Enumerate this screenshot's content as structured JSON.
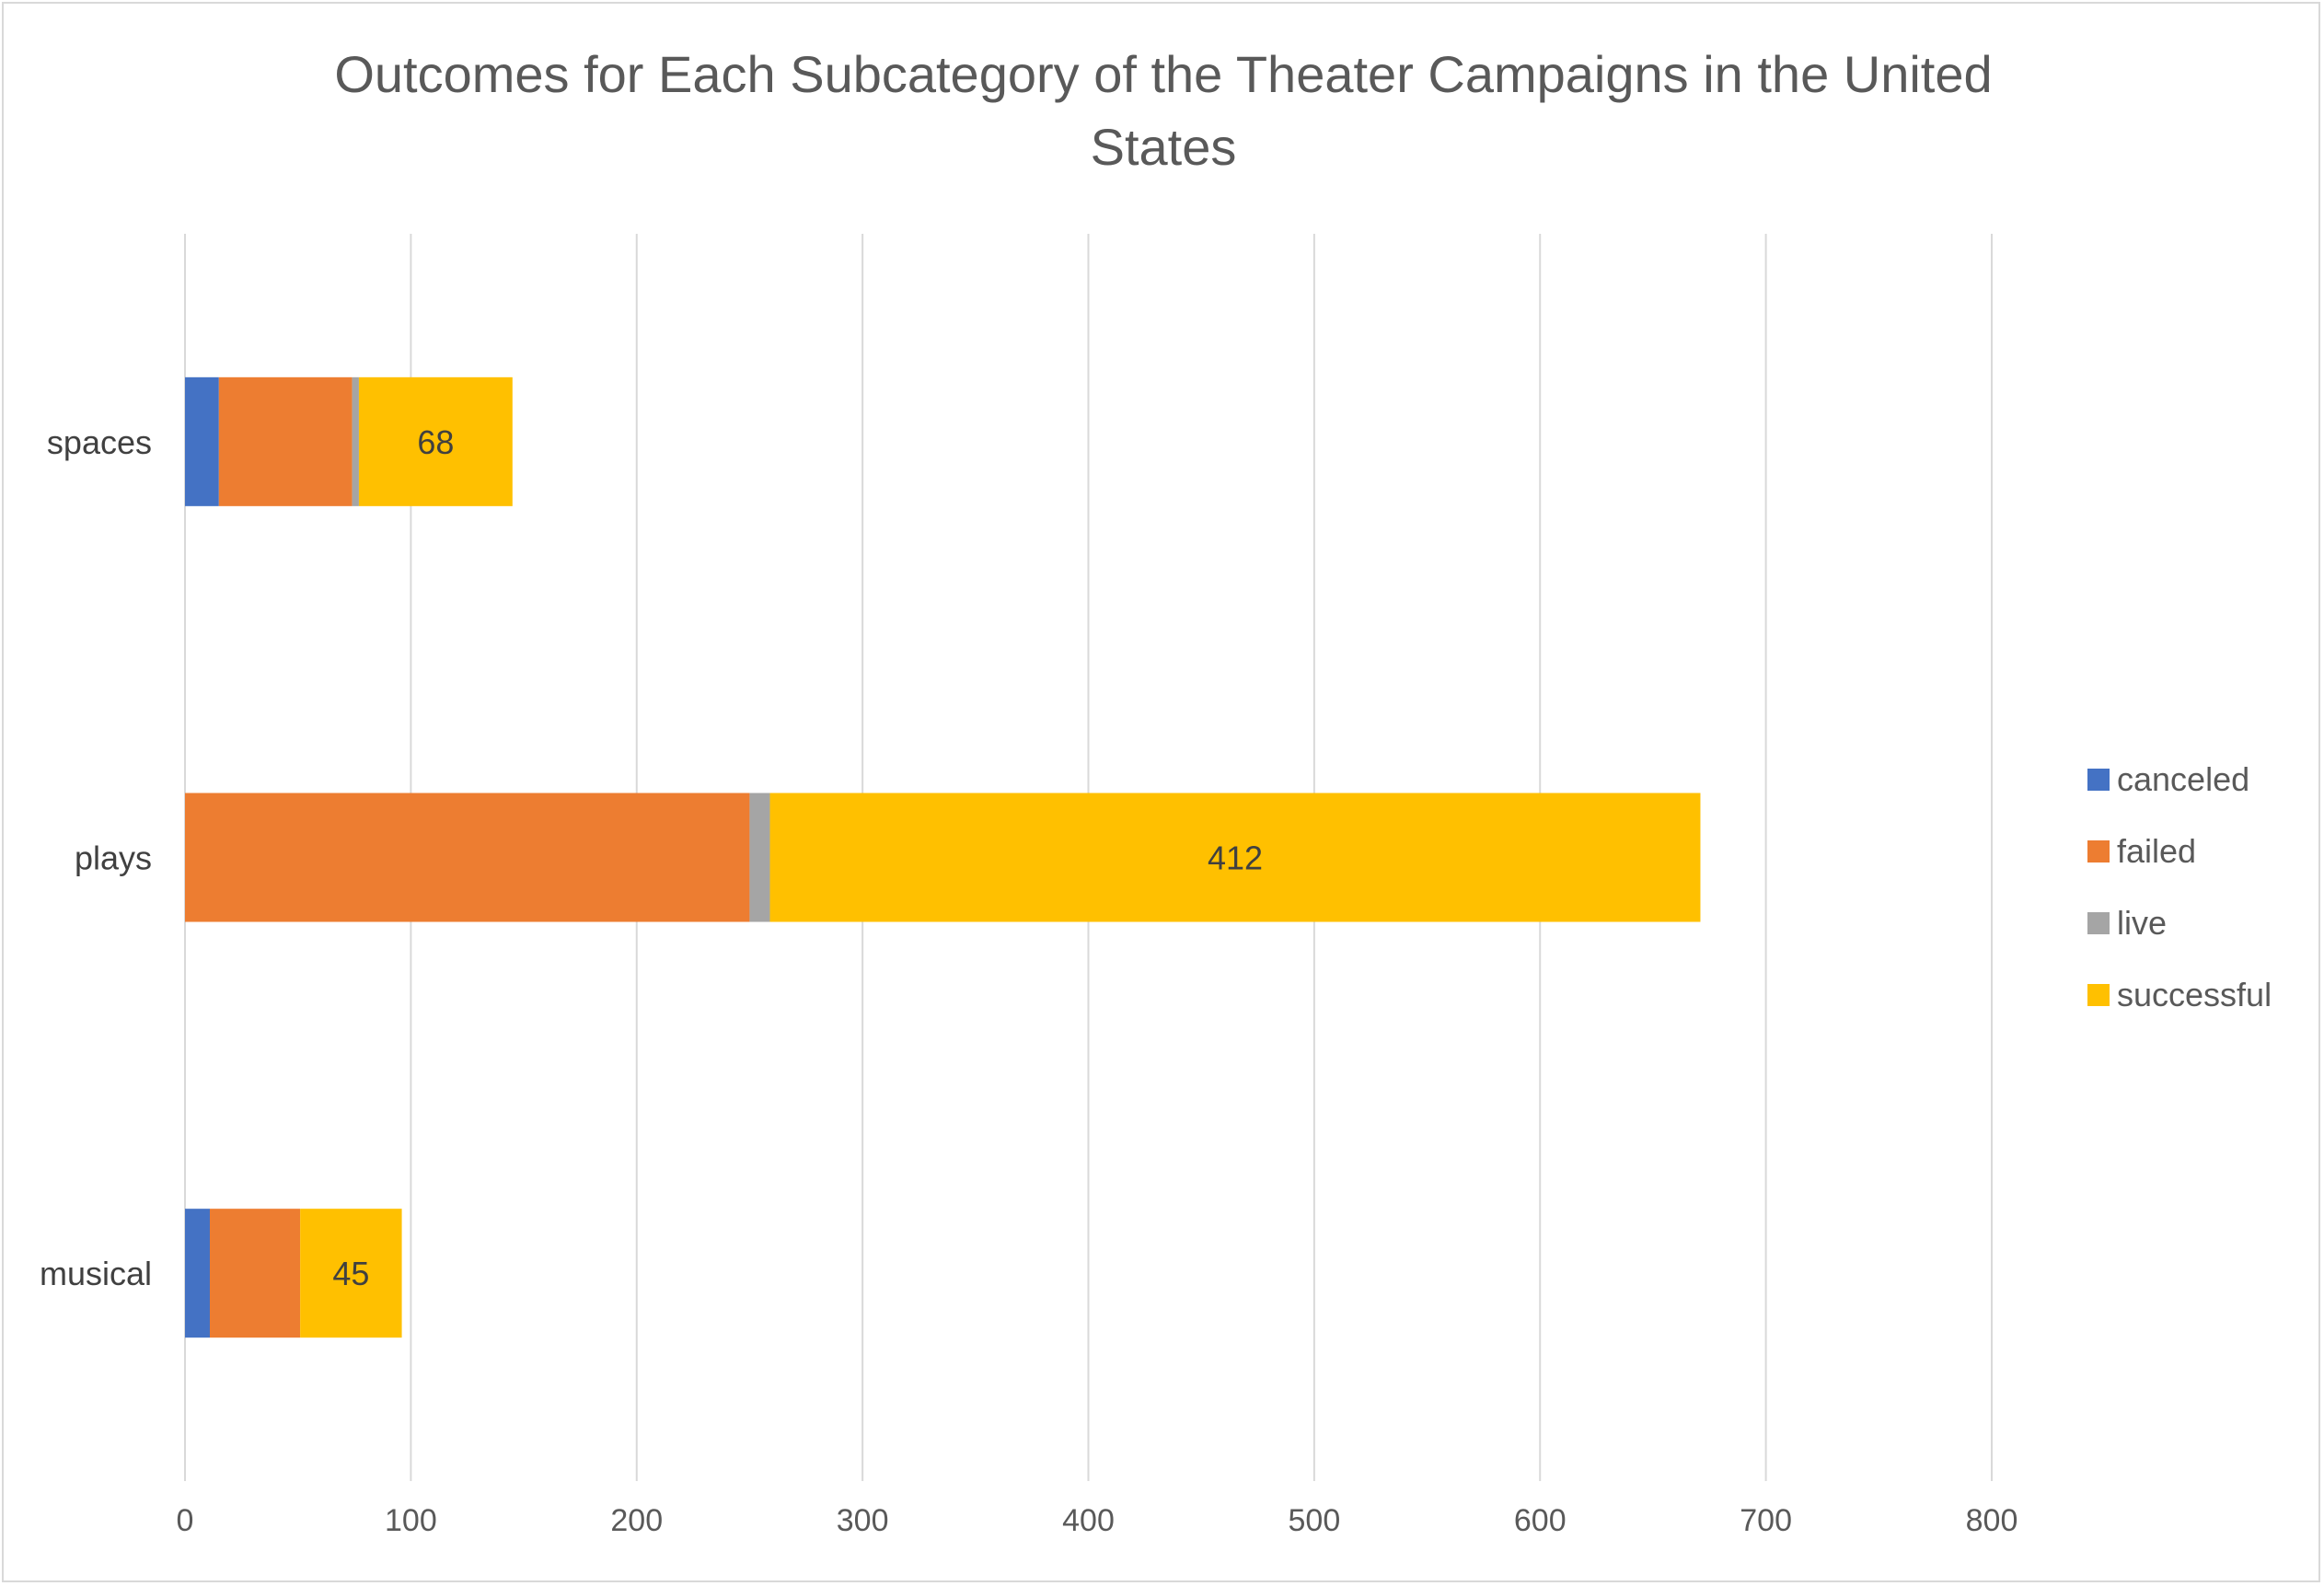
{
  "chart_data": {
    "type": "bar",
    "orientation": "horizontal",
    "stacked": true,
    "title": "Outcomes for Each Subcategory of the Theater Campaigns in the United States",
    "title_lines": [
      "Outcomes for Each Subcategory of the Theater Campaigns in the United",
      "States"
    ],
    "xlabel": "",
    "ylabel": "",
    "xlim": [
      0,
      800
    ],
    "x_ticks": [
      0,
      100,
      200,
      300,
      400,
      500,
      600,
      700,
      800
    ],
    "grid": true,
    "legend_position": "right",
    "categories": [
      "musical",
      "plays",
      "spaces"
    ],
    "series": [
      {
        "name": "canceled",
        "color": "#4472c4",
        "values": [
          11,
          0,
          15
        ]
      },
      {
        "name": "failed",
        "color": "#ed7d31",
        "values": [
          40,
          250,
          59
        ]
      },
      {
        "name": "live",
        "color": "#a5a5a5",
        "values": [
          0,
          9,
          3
        ]
      },
      {
        "name": "successful",
        "color": "#ffc000",
        "values": [
          45,
          412,
          68
        ]
      }
    ],
    "data_labels": {
      "series": "successful",
      "values": [
        "45",
        "412",
        "68"
      ]
    }
  }
}
